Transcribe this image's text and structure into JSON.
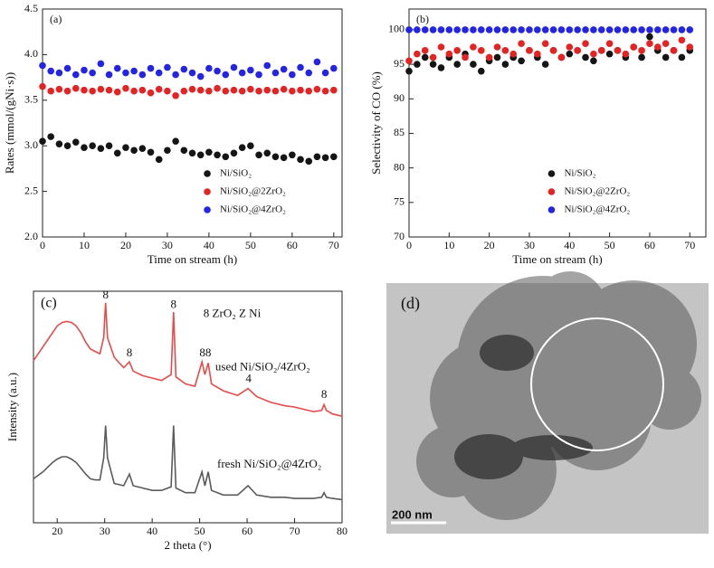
{
  "chart_data": [
    {
      "type": "scatter",
      "panel_label": "(a)",
      "xlabel": "Time on stream (h)",
      "ylabel": "Rates (mmol/(gNi·s))",
      "x": [
        0,
        2,
        4,
        6,
        8,
        10,
        12,
        14,
        16,
        18,
        20,
        22,
        24,
        26,
        28,
        30,
        32,
        34,
        36,
        38,
        40,
        42,
        44,
        46,
        48,
        50,
        52,
        54,
        56,
        58,
        60,
        62,
        64,
        66,
        68,
        70
      ],
      "xlim": [
        0,
        72
      ],
      "xticks": [
        0,
        10,
        20,
        30,
        40,
        50,
        60,
        70
      ],
      "ylim": [
        2.0,
        4.5
      ],
      "yticks": [
        {
          "value": 2.0,
          "label": "2.0"
        },
        {
          "value": 2.5,
          "label": "2.5"
        },
        {
          "value": 3.0,
          "label": "3.0"
        },
        {
          "value": 3.5,
          "label": "3.5"
        },
        {
          "value": 4.0,
          "label": "4.0"
        },
        {
          "value": 4.5,
          "label": "4.5"
        }
      ],
      "legend": "lower right",
      "series": [
        {
          "name": "Ni/SiO₂",
          "color": "#151515",
          "values": [
            3.05,
            3.1,
            3.02,
            3.0,
            3.04,
            2.98,
            3.0,
            2.97,
            3.0,
            2.92,
            2.98,
            2.95,
            2.97,
            2.93,
            2.85,
            2.95,
            3.05,
            2.95,
            2.92,
            2.9,
            2.93,
            2.9,
            2.88,
            2.92,
            2.98,
            3.0,
            2.9,
            2.92,
            2.88,
            2.87,
            2.9,
            2.85,
            2.83,
            2.88,
            2.87,
            2.88
          ]
        },
        {
          "name": "Ni/SiO₂@2ZrO₂",
          "color": "#e62222",
          "values": [
            3.65,
            3.6,
            3.62,
            3.6,
            3.63,
            3.61,
            3.6,
            3.62,
            3.61,
            3.59,
            3.63,
            3.6,
            3.61,
            3.58,
            3.62,
            3.6,
            3.55,
            3.6,
            3.62,
            3.61,
            3.6,
            3.63,
            3.6,
            3.61,
            3.6,
            3.62,
            3.6,
            3.61,
            3.6,
            3.62,
            3.6,
            3.61,
            3.6,
            3.62,
            3.6,
            3.61
          ]
        },
        {
          "name": "Ni/SiO₂@4ZrO₂",
          "color": "#2424e6",
          "values": [
            3.88,
            3.82,
            3.8,
            3.85,
            3.78,
            3.83,
            3.8,
            3.9,
            3.78,
            3.85,
            3.8,
            3.82,
            3.78,
            3.85,
            3.8,
            3.86,
            3.78,
            3.84,
            3.8,
            3.76,
            3.85,
            3.82,
            3.78,
            3.86,
            3.8,
            3.83,
            3.78,
            3.88,
            3.8,
            3.84,
            3.78,
            3.86,
            3.8,
            3.92,
            3.8,
            3.85
          ]
        }
      ]
    },
    {
      "type": "scatter",
      "panel_label": "(b)",
      "xlabel": "Time on stream (h)",
      "ylabel": "Selectivity of CO (%)",
      "x": [
        0,
        2,
        4,
        6,
        8,
        10,
        12,
        14,
        16,
        18,
        20,
        22,
        24,
        26,
        28,
        30,
        32,
        34,
        36,
        38,
        40,
        42,
        44,
        46,
        48,
        50,
        52,
        54,
        56,
        58,
        60,
        62,
        64,
        66,
        68,
        70
      ],
      "xlim": [
        0,
        74
      ],
      "xticks": [
        0,
        10,
        20,
        30,
        40,
        50,
        60,
        70
      ],
      "ylim": [
        70,
        103
      ],
      "yticks": [
        70,
        75,
        80,
        85,
        90,
        95,
        100
      ],
      "legend": "lower right",
      "series": [
        {
          "name": "Ni/SiO₂",
          "color": "#151515",
          "values": [
            94,
            95,
            96,
            95,
            94.5,
            96,
            95,
            96.5,
            95,
            94,
            95.5,
            96,
            95,
            96,
            95.5,
            97,
            96,
            95,
            97,
            96,
            96.5,
            97,
            96,
            95.5,
            97,
            96.5,
            97,
            96,
            97.5,
            96,
            99,
            97,
            96,
            97,
            96,
            97
          ]
        },
        {
          "name": "Ni/SiO₂@2ZrO₂",
          "color": "#e62222",
          "values": [
            95.5,
            96.5,
            97,
            96,
            97.5,
            96.5,
            97,
            96,
            97.5,
            97,
            96,
            97.5,
            97,
            96.5,
            98,
            97,
            96.5,
            98,
            97,
            96,
            97.5,
            97,
            98,
            96.5,
            97,
            98,
            97,
            96.5,
            97.5,
            97,
            98,
            97.5,
            98,
            97,
            98.5,
            97.5
          ]
        },
        {
          "name": "Ni/SiO₂@4ZrO₂",
          "color": "#2424e6",
          "values": [
            100,
            100,
            100,
            100,
            100,
            100,
            100,
            100,
            100,
            100,
            100,
            100,
            100,
            100,
            100,
            100,
            100,
            100,
            100,
            100,
            100,
            100,
            100,
            100,
            100,
            100,
            100,
            100,
            100,
            100,
            100,
            100,
            100,
            100,
            100,
            100
          ]
        }
      ]
    },
    {
      "type": "line",
      "panel_label": "(c)",
      "xlabel": "2 theta (°)",
      "ylabel": "Intensity (a.u.)",
      "x": [
        15,
        17,
        19,
        20,
        21,
        22,
        23,
        24,
        25,
        26,
        27,
        28,
        29,
        29.8,
        30.2,
        30.6,
        32,
        34,
        35.2,
        36,
        38,
        40,
        42,
        44,
        44.5,
        45,
        47,
        49,
        50.5,
        51.1,
        51.8,
        52.5,
        55,
        58,
        60.2,
        62,
        65,
        68,
        70,
        72,
        74,
        75.7,
        76.2,
        76.7,
        78,
        80
      ],
      "xlim": [
        15,
        80
      ],
      "xticks": [
        20,
        30,
        40,
        50,
        60,
        70,
        80
      ],
      "ylim": [
        0,
        100
      ],
      "series": [
        {
          "name": "used Ni/SiO₂/4ZrO₂",
          "color": "#e84a4a",
          "values": [
            70,
            76,
            82,
            85,
            86.5,
            87,
            86.5,
            85,
            82,
            78,
            75,
            74,
            73,
            80,
            95,
            80,
            71.5,
            67,
            69.5,
            65.5,
            63.5,
            62.5,
            61.5,
            64,
            91,
            63,
            60,
            59,
            69.5,
            64,
            69,
            60,
            57,
            55,
            58,
            54.5,
            52,
            50.5,
            50,
            49,
            48,
            48.5,
            51,
            48.5,
            47,
            46
          ]
        },
        {
          "name": "fresh Ni/SiO₂@4ZrO₂",
          "color": "#5a5a5a",
          "values": [
            19,
            22,
            26,
            27.5,
            28.5,
            28.5,
            27.5,
            26,
            23.5,
            21,
            19,
            18.5,
            18.5,
            28,
            42,
            28,
            17,
            16,
            21,
            16,
            15,
            14,
            14,
            15.5,
            42,
            15,
            13,
            13,
            22,
            16,
            22,
            14,
            12,
            12,
            16,
            12,
            11,
            11,
            10.5,
            10.5,
            10.5,
            11,
            13,
            11,
            10.5,
            10
          ]
        }
      ],
      "annotations": [
        {
          "text": "8",
          "x": 30.2,
          "y": 98
        },
        {
          "text": "8",
          "x": 35.2,
          "y": 73
        },
        {
          "text": "8",
          "x": 44.5,
          "y": 94
        },
        {
          "text": "88",
          "x": 51.2,
          "y": 73
        },
        {
          "text": "4",
          "x": 60.3,
          "y": 62
        },
        {
          "text": "8",
          "x": 76.2,
          "y": 55
        },
        {
          "text": "8 ZrO₂   Z Ni",
          "x": 50.8,
          "y": 90
        },
        {
          "text": "used Ni/SiO₂/4ZrO₂",
          "x": 53.3,
          "y": 67
        },
        {
          "text": "fresh Ni/SiO₂@4ZrO₂",
          "x": 53.7,
          "y": 25
        }
      ]
    }
  ],
  "image": {
    "label": "(d)",
    "scale_bar": "200 nm"
  }
}
